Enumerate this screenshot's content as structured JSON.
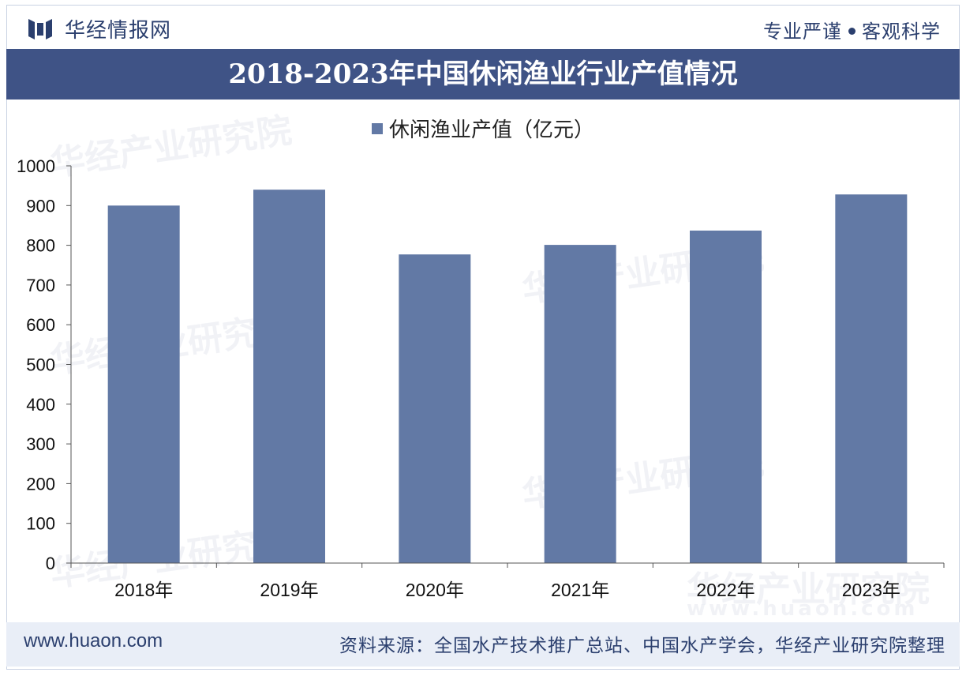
{
  "header": {
    "brand": "华经情报网",
    "motto_left": "专业严谨",
    "motto_right": "客观科学"
  },
  "colors": {
    "title_bg": "#3f5386",
    "bar": "#6279a5",
    "brand": "#2b3f6e",
    "footer_bg": "#e9eef7"
  },
  "watermark": {
    "cn": "华经产业研究院",
    "url": "www.huaon.com"
  },
  "footer": {
    "site": "www.huaon.com",
    "source": "资料来源：全国水产技术推广总站、中国水产学会，华经产业研究院整理"
  },
  "chart_data": {
    "type": "bar",
    "title": "2018-2023年中国休闲渔业行业产值情况",
    "legend": "休闲渔业产值（亿元）",
    "categories": [
      "2018年",
      "2019年",
      "2020年",
      "2021年",
      "2022年",
      "2023年"
    ],
    "values": [
      900,
      940,
      777,
      801,
      837,
      928
    ],
    "ylim": [
      0,
      1000
    ],
    "yticks": [
      0,
      100,
      200,
      300,
      400,
      500,
      600,
      700,
      800,
      900,
      1000
    ],
    "xlabel": "",
    "ylabel": "",
    "grid": false
  }
}
